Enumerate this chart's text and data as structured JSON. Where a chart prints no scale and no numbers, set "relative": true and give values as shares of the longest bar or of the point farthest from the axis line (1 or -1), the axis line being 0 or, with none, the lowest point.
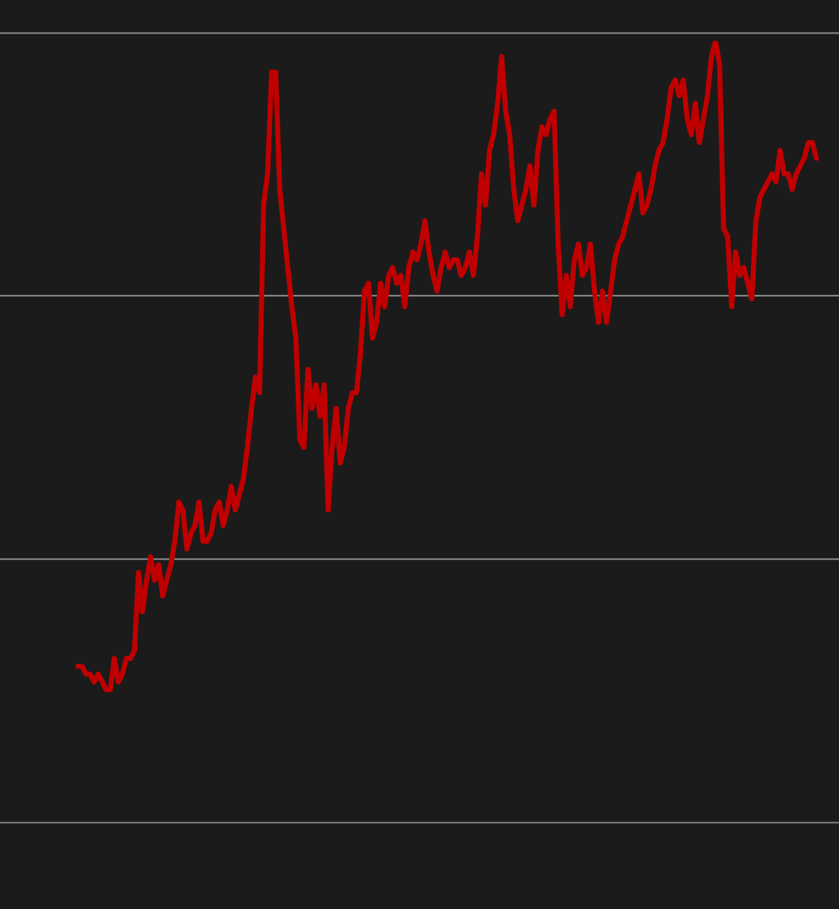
{
  "chart_data": {
    "type": "line",
    "relative": true,
    "ref_lines": [
      {
        "axis": "y",
        "value": 0.337,
        "color": "#8a8a8a"
      },
      {
        "axis": "y",
        "value": 0.674,
        "color": "#8a8a8a"
      },
      {
        "axis": "y",
        "value": 1.01,
        "color": "#8a8a8a"
      }
    ],
    "categories": [
      null,
      null,
      null,
      null,
      null,
      null,
      null,
      null,
      null,
      null,
      null,
      null,
      null,
      null,
      null,
      null,
      null,
      null,
      null,
      null,
      null,
      null,
      null,
      null,
      null,
      null,
      null,
      null,
      null,
      null,
      null,
      null,
      null,
      null,
      null,
      null,
      null,
      null,
      null,
      null,
      null,
      null,
      null,
      null,
      null,
      null,
      null,
      null,
      null,
      null,
      null,
      null,
      null,
      null,
      null,
      null,
      null,
      null,
      null,
      null,
      null,
      null,
      null,
      null,
      null,
      null,
      null,
      null,
      null,
      null,
      null,
      null,
      null,
      null,
      null,
      null,
      null,
      null,
      null,
      null,
      null,
      null,
      null,
      null,
      null,
      null,
      null,
      null,
      null,
      null,
      null,
      null,
      null,
      null,
      null,
      null,
      null,
      null,
      null,
      null,
      null,
      null,
      null,
      null,
      null,
      null,
      null,
      null,
      null,
      null,
      null,
      null,
      null,
      null,
      null,
      null,
      null,
      null,
      null,
      null,
      null,
      null,
      null,
      null,
      null,
      null,
      null,
      null,
      null,
      null,
      null,
      null,
      null,
      null,
      null,
      null,
      null,
      null,
      null,
      null,
      null,
      null,
      null,
      null,
      null,
      null,
      null,
      null,
      null,
      null,
      null,
      null,
      null,
      null,
      null,
      null,
      null,
      null,
      null,
      null,
      null,
      null,
      null,
      null,
      null,
      null,
      null,
      null,
      null,
      null,
      null,
      null,
      null,
      null,
      null,
      null,
      null,
      null,
      null,
      null,
      null,
      null,
      null,
      null
    ],
    "series": [
      {
        "color": "#c00000",
        "values": [
          0.2,
          0.2,
          0.19,
          0.19,
          0.18,
          0.19,
          0.18,
          0.17,
          0.17,
          0.21,
          0.18,
          0.19,
          0.21,
          0.21,
          0.22,
          0.32,
          0.27,
          0.31,
          0.34,
          0.31,
          0.33,
          0.29,
          0.31,
          0.33,
          0.36,
          0.41,
          0.4,
          0.35,
          0.37,
          0.38,
          0.41,
          0.36,
          0.36,
          0.37,
          0.4,
          0.41,
          0.38,
          0.4,
          0.43,
          0.4,
          0.42,
          0.44,
          0.48,
          0.53,
          0.57,
          0.55,
          0.79,
          0.83,
          0.96,
          0.96,
          0.81,
          0.76,
          0.71,
          0.66,
          0.62,
          0.49,
          0.48,
          0.58,
          0.53,
          0.56,
          0.52,
          0.56,
          0.4,
          0.48,
          0.53,
          0.46,
          0.48,
          0.53,
          0.55,
          0.55,
          0.6,
          0.68,
          0.69,
          0.62,
          0.64,
          0.69,
          0.66,
          0.7,
          0.71,
          0.69,
          0.7,
          0.66,
          0.71,
          0.73,
          0.72,
          0.74,
          0.77,
          0.73,
          0.7,
          0.68,
          0.71,
          0.73,
          0.71,
          0.72,
          0.72,
          0.7,
          0.71,
          0.73,
          0.7,
          0.75,
          0.83,
          0.79,
          0.86,
          0.88,
          0.92,
          0.98,
          0.91,
          0.88,
          0.81,
          0.77,
          0.79,
          0.81,
          0.84,
          0.79,
          0.86,
          0.89,
          0.88,
          0.9,
          0.91,
          0.74,
          0.65,
          0.7,
          0.66,
          0.72,
          0.74,
          0.7,
          0.71,
          0.74,
          0.68,
          0.64,
          0.68,
          0.64,
          0.68,
          0.72,
          0.74,
          0.75,
          0.77,
          0.79,
          0.81,
          0.83,
          0.78,
          0.79,
          0.81,
          0.84,
          0.86,
          0.87,
          0.9,
          0.94,
          0.95,
          0.93,
          0.95,
          0.9,
          0.88,
          0.92,
          0.87,
          0.9,
          0.93,
          0.98,
          1.0,
          0.97,
          0.76,
          0.75,
          0.66,
          0.73,
          0.7,
          0.71,
          0.69,
          0.67,
          0.77,
          0.8,
          0.81,
          0.82,
          0.83,
          0.82,
          0.86,
          0.83,
          0.83,
          0.81,
          0.83,
          0.84,
          0.85,
          0.87,
          0.87,
          0.85
        ]
      }
    ]
  }
}
